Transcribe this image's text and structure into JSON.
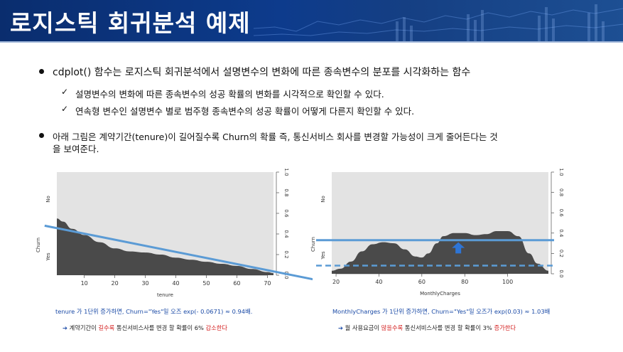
{
  "slide": {
    "title": "로지스틱 회귀분석 예제"
  },
  "bullets": {
    "b1": "cdplot() 함수는 로지스틱 회귀분석에서 설명변수의 변화에 따른 종속변수의 분포를 시각화하는 함수",
    "b1_sub1": "설명변수의 변화에 따른 종속변수의 성공 확률의 변화를 시각적으로 확인할 수 있다.",
    "b1_sub2": "연속형 변수인 설명변수 별로 범주형 종속변수의 성공 확률이 어떻게 다른지 확인할 수 있다.",
    "b2_line1": "아래 그림은 계약기간(tenure)이 길어질수록 Churn의 확률 즉, 통신서비스 회사를 변경할 가능성이 크게 줄어든다는 것",
    "b2_line2": "을 보여준다.",
    "check_glyph": "✓"
  },
  "captions": {
    "left_main": "tenure 가 1단위 증가하면, Churn=\"Yes\"일 오즈 exp(- 0.0671) ≈ 0.94배.",
    "left_arrow": "➔",
    "left_sub_a": " 계약기간이 ",
    "left_sub_red": "길수록",
    "left_sub_b": " 통신서비스사를 변경 할 확률이 6% ",
    "left_sub_red2": "감소한다",
    "right_main": "MonthlyCharges 가 1단위 증가하면, Churn=\"Yes\"일 오즈가 exp(0.03) ≈ 1.03배",
    "right_arrow": "➔",
    "right_sub_a": " 월 사용요금이 ",
    "right_sub_red": "많을수록",
    "right_sub_b": " 통신서비스사를 변경 할 확률이 3% ",
    "right_sub_red2": "증가한다"
  },
  "chart_data": [
    {
      "type": "area",
      "xlabel": "tenure",
      "ylabel": "Churn",
      "y_categories": [
        "Yes",
        "No"
      ],
      "x_ticks": [
        10,
        20,
        30,
        40,
        50,
        60,
        70
      ],
      "right_ticks": [
        "0.0",
        "0.2",
        "0.4",
        "0.6",
        "0.8",
        "1.0"
      ],
      "xlim": [
        1,
        72
      ],
      "ylim": [
        0,
        1
      ],
      "yes_probability": {
        "x": [
          1,
          3,
          6,
          10,
          15,
          20,
          25,
          30,
          35,
          40,
          45,
          50,
          55,
          60,
          65,
          70,
          72
        ],
        "y": [
          0.55,
          0.52,
          0.45,
          0.39,
          0.32,
          0.26,
          0.23,
          0.22,
          0.2,
          0.17,
          0.15,
          0.13,
          0.11,
          0.09,
          0.06,
          0.03,
          0.02
        ]
      },
      "trend_line": {
        "x": [
          -3,
          85
        ],
        "y": [
          0.48,
          -0.04
        ],
        "color": "#5b9bd5"
      },
      "colors": {
        "yes": "#4a4a4a",
        "no": "#e3e3e3"
      }
    },
    {
      "type": "area",
      "xlabel": "MonthlyCharges",
      "ylabel": "Churn",
      "y_categories": [
        "Yes",
        "No"
      ],
      "x_ticks": [
        20,
        40,
        60,
        80,
        100
      ],
      "right_ticks": [
        "0.0",
        "0.2",
        "0.4",
        "0.6",
        "0.8",
        "1.0"
      ],
      "xlim": [
        18,
        119
      ],
      "ylim": [
        0,
        1
      ],
      "yes_probability": {
        "x": [
          18,
          22,
          27,
          32,
          37,
          42,
          47,
          52,
          57,
          60,
          63,
          67,
          70,
          75,
          80,
          85,
          90,
          95,
          100,
          105,
          110,
          114,
          119
        ],
        "y": [
          0.03,
          0.05,
          0.12,
          0.22,
          0.29,
          0.31,
          0.3,
          0.24,
          0.17,
          0.16,
          0.2,
          0.3,
          0.37,
          0.4,
          0.4,
          0.38,
          0.39,
          0.42,
          0.42,
          0.37,
          0.2,
          0.1,
          0.03
        ]
      },
      "solid_line": {
        "y": 0.33,
        "color": "#5b9bd5"
      },
      "dashed_line": {
        "y": 0.08,
        "color": "#5b9bd5"
      },
      "arrow": {
        "x": 77,
        "from_y": 0.2,
        "to_y": 0.31,
        "color": "#2e75d6"
      },
      "colors": {
        "yes": "#4a4a4a",
        "no": "#e3e3e3"
      }
    }
  ]
}
